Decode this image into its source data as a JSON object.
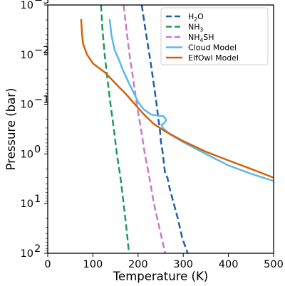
{
  "chart_data": {
    "type": "line",
    "xlabel": "Temperature (K)",
    "ylabel": "Pressure (bar)",
    "xlim": [
      0,
      500
    ],
    "ylim": [
      100,
      0.001
    ],
    "yscale": "log",
    "y_inverted": true,
    "grid": false,
    "legend_position": "top-right",
    "x_ticks": [
      {
        "value": 0,
        "label": "0"
      },
      {
        "value": 100,
        "label": "100"
      },
      {
        "value": 200,
        "label": "200"
      },
      {
        "value": 300,
        "label": "300"
      },
      {
        "value": 400,
        "label": "400"
      },
      {
        "value": 500,
        "label": "500"
      }
    ],
    "y_ticks": [
      {
        "value": 0.001,
        "base": "10",
        "exp": "−3"
      },
      {
        "value": 0.01,
        "base": "10",
        "exp": "−2"
      },
      {
        "value": 0.1,
        "base": "10",
        "exp": "−1"
      },
      {
        "value": 1,
        "base": "10",
        "exp": "0"
      },
      {
        "value": 10,
        "base": "10",
        "exp": "1"
      },
      {
        "value": 100,
        "base": "10",
        "exp": "2"
      }
    ],
    "series": [
      {
        "name": "H2O",
        "legend": {
          "main": "H",
          "sub": "2",
          "tail": "O"
        },
        "color": "#1f5fa8",
        "style": "dashed",
        "points": [
          [
            208,
            0.001
          ],
          [
            216,
            0.003
          ],
          [
            225,
            0.01
          ],
          [
            233,
            0.03
          ],
          [
            241,
            0.1
          ],
          [
            245,
            0.2
          ],
          [
            248,
            0.3
          ],
          [
            251,
            0.6
          ],
          [
            255,
            1.0
          ],
          [
            257,
            1.5
          ],
          [
            260,
            2.5
          ],
          [
            265,
            3.0
          ],
          [
            270,
            5.0
          ],
          [
            279,
            10
          ],
          [
            288,
            20
          ],
          [
            298,
            50
          ],
          [
            310,
            100
          ]
        ]
      },
      {
        "name": "NH3",
        "legend": {
          "main": "NH",
          "sub": "3",
          "tail": ""
        },
        "color": "#1e9a5e",
        "style": "dashed",
        "points": [
          [
            118,
            0.001
          ],
          [
            121,
            0.003
          ],
          [
            126,
            0.01
          ],
          [
            132,
            0.03
          ],
          [
            139,
            0.1
          ],
          [
            146,
            0.3
          ],
          [
            153,
            1
          ],
          [
            161,
            3
          ],
          [
            168,
            10
          ],
          [
            174,
            30
          ],
          [
            180,
            100
          ]
        ]
      },
      {
        "name": "NH4SH",
        "legend": {
          "main": "NH",
          "sub": "4",
          "tail": "SH"
        },
        "color": "#cc79c8",
        "style": "dashed",
        "points": [
          [
            168,
            0.001
          ],
          [
            174,
            0.003
          ],
          [
            181,
            0.01
          ],
          [
            189,
            0.03
          ],
          [
            197,
            0.1
          ],
          [
            206,
            0.3
          ],
          [
            215,
            1
          ],
          [
            225,
            3
          ],
          [
            235,
            10
          ],
          [
            247,
            30
          ],
          [
            260,
            100
          ]
        ]
      },
      {
        "name": "Cloud Model",
        "color": "#5bb8ea",
        "style": "solid",
        "points": [
          [
            137,
            0.00193
          ],
          [
            141,
            0.004
          ],
          [
            148,
            0.008
          ],
          [
            158,
            0.013
          ],
          [
            166,
            0.02
          ],
          [
            180,
            0.038
          ],
          [
            191,
            0.06
          ],
          [
            200,
            0.09
          ],
          [
            212,
            0.125
          ],
          [
            228,
            0.16
          ],
          [
            245,
            0.17
          ],
          [
            256,
            0.173
          ],
          [
            260,
            0.19
          ],
          [
            262,
            0.21
          ],
          [
            258,
            0.24
          ],
          [
            252,
            0.26
          ],
          [
            255,
            0.3
          ],
          [
            270,
            0.4
          ],
          [
            300,
            0.58
          ],
          [
            350,
            1.0
          ],
          [
            400,
            1.7
          ],
          [
            450,
            2.5
          ],
          [
            500,
            3.5
          ]
        ]
      },
      {
        "name": "ElfOwl Model",
        "color": "#d4620a",
        "style": "solid",
        "points": [
          [
            74,
            0.00193
          ],
          [
            76,
            0.004
          ],
          [
            78,
            0.006
          ],
          [
            87,
            0.01
          ],
          [
            100,
            0.015
          ],
          [
            127,
            0.023
          ],
          [
            150,
            0.038
          ],
          [
            175,
            0.065
          ],
          [
            195,
            0.105
          ],
          [
            213,
            0.16
          ],
          [
            235,
            0.25
          ],
          [
            260,
            0.35
          ],
          [
            300,
            0.55
          ],
          [
            350,
            0.9
          ],
          [
            400,
            1.35
          ],
          [
            450,
            2.0
          ],
          [
            500,
            3.0
          ]
        ]
      }
    ]
  }
}
